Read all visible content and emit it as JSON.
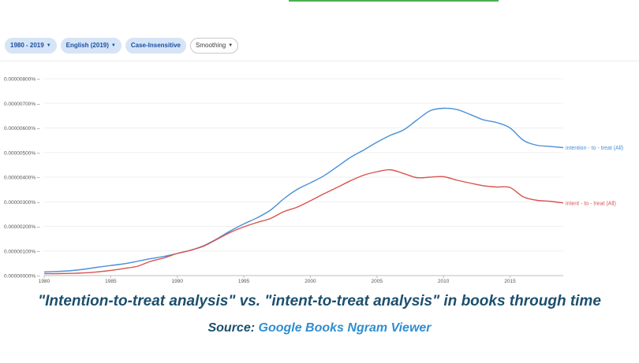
{
  "filters": [
    {
      "label": "1980 - 2019",
      "caret": true,
      "style": "chip"
    },
    {
      "label": "English (2019)",
      "caret": true,
      "style": "chip"
    },
    {
      "label": "Case-Insensitive",
      "caret": false,
      "style": "chip"
    },
    {
      "label": "Smoothing",
      "caret": true,
      "style": "plain"
    }
  ],
  "caption": "\"Intention-to-treat analysis\" vs. \"intent-to-treat analysis\" in books through time",
  "source": {
    "prefix": "Source:",
    "link": "Google Books Ngram Viewer"
  },
  "chart_data": {
    "type": "line",
    "x_ticks": [
      1980,
      1985,
      1990,
      1995,
      2000,
      2005,
      2010,
      2015
    ],
    "y_ticks": [
      "0.00000000%",
      "0.00000100%",
      "0.00000200%",
      "0.00000300%",
      "0.00000400%",
      "0.00000500%",
      "0.00000600%",
      "0.00000700%",
      "0.00000800%"
    ],
    "xlim": [
      1980,
      2019
    ],
    "ylim": [
      0,
      8e-07
    ],
    "grid": true,
    "series": [
      {
        "name": "intention - to - treat (All)",
        "color": "#4a90d9",
        "x": [
          1980,
          1981,
          1982,
          1983,
          1984,
          1985,
          1986,
          1987,
          1988,
          1989,
          1990,
          1991,
          1992,
          1993,
          1994,
          1995,
          1996,
          1997,
          1998,
          1999,
          2000,
          2001,
          2002,
          2003,
          2004,
          2005,
          2006,
          2007,
          2008,
          2009,
          2010,
          2011,
          2012,
          2013,
          2014,
          2015,
          2016,
          2017,
          2018,
          2019
        ],
        "values": [
          1.5e-08,
          1.7e-08,
          2e-08,
          2.6e-08,
          3.4e-08,
          4.1e-08,
          4.8e-08,
          5.8e-08,
          6.9e-08,
          7.8e-08,
          9e-08,
          1.03e-07,
          1.22e-07,
          1.5e-07,
          1.82e-07,
          2.1e-07,
          2.35e-07,
          2.66e-07,
          3.12e-07,
          3.5e-07,
          3.77e-07,
          4.05e-07,
          4.42e-07,
          4.8e-07,
          5.1e-07,
          5.42e-07,
          5.7e-07,
          5.92e-07,
          6.32e-07,
          6.7e-07,
          6.8e-07,
          6.75e-07,
          6.55e-07,
          6.33e-07,
          6.22e-07,
          6e-07,
          5.5e-07,
          5.3e-07,
          5.25e-07,
          5.2e-07
        ]
      },
      {
        "name": "intent - to - treat (All)",
        "color": "#d9534f",
        "x": [
          1980,
          1981,
          1982,
          1983,
          1984,
          1985,
          1986,
          1987,
          1988,
          1989,
          1990,
          1991,
          1992,
          1993,
          1994,
          1995,
          1996,
          1997,
          1998,
          1999,
          2000,
          2001,
          2002,
          2003,
          2004,
          2005,
          2006,
          2007,
          2008,
          2009,
          2010,
          2011,
          2012,
          2013,
          2014,
          2015,
          2016,
          2017,
          2018,
          2019
        ],
        "values": [
          8e-09,
          8e-09,
          9e-09,
          1.1e-08,
          1.5e-08,
          2.1e-08,
          2.9e-08,
          3.8e-08,
          5.8e-08,
          7.2e-08,
          9e-08,
          1.03e-07,
          1.2e-07,
          1.48e-07,
          1.76e-07,
          1.98e-07,
          2.16e-07,
          2.32e-07,
          2.6e-07,
          2.78e-07,
          3.04e-07,
          3.32e-07,
          3.58e-07,
          3.85e-07,
          4.08e-07,
          4.22e-07,
          4.3e-07,
          4.15e-07,
          3.98e-07,
          4e-07,
          4.02e-07,
          3.88e-07,
          3.76e-07,
          3.65e-07,
          3.6e-07,
          3.58e-07,
          3.2e-07,
          3.06e-07,
          3.02e-07,
          2.95e-07
        ]
      }
    ]
  }
}
